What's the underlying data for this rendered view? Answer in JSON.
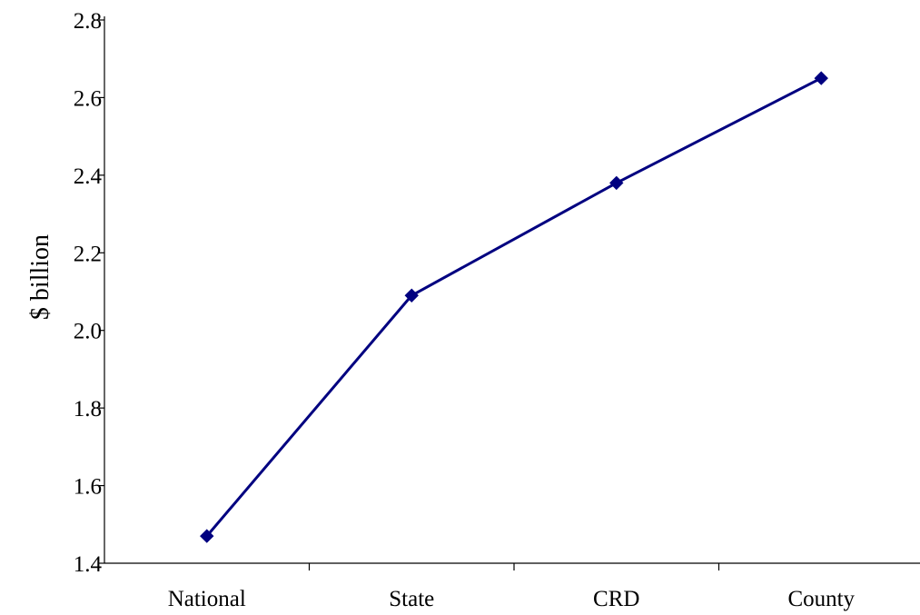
{
  "chart_data": {
    "type": "line",
    "title": "",
    "xlabel": "",
    "ylabel": "$ billion",
    "categories": [
      "National",
      "State",
      "CRD",
      "County"
    ],
    "series": [
      {
        "values": [
          1.47,
          2.09,
          2.38,
          2.65
        ]
      }
    ],
    "ylim": [
      1.4,
      2.8
    ],
    "yticks": [
      1.4,
      1.6,
      1.8,
      2.0,
      2.2,
      2.4,
      2.6,
      2.8
    ],
    "ytick_labels": [
      "1.4",
      "1.6",
      "1.8",
      "2.0",
      "2.2",
      "2.4",
      "2.6",
      "2.8"
    ],
    "grid": false,
    "legend": "none",
    "marker": "diamond",
    "line_color": "#000080"
  }
}
